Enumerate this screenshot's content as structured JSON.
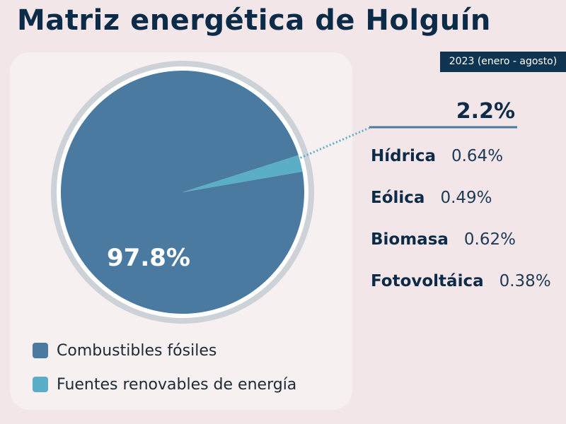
{
  "title": "Matriz energética de Holguín",
  "period": "2023 (enero - agosto)",
  "renewable_total_label": "2.2%",
  "colors": {
    "fossil": "#4b7aa0",
    "renewable": "#5aaec6",
    "title": "#0c2b48",
    "period_bg": "#0f3452"
  },
  "legend": [
    {
      "label": "Combustibles fósiles",
      "color": "#4b7aa0"
    },
    {
      "label": "Fuentes renovables de energía",
      "color": "#5aaec6"
    }
  ],
  "breakdown": [
    {
      "name": "Hídrica",
      "value": "0.64%"
    },
    {
      "name": "Eólica",
      "value": "0.49%"
    },
    {
      "name": "Biomasa",
      "value": "0.62%"
    },
    {
      "name": "Fotovoltáica",
      "value": "0.38%"
    }
  ],
  "chart_data": {
    "type": "pie",
    "title": "Matriz energética de Holguín",
    "subtitle": "2023 (enero - agosto)",
    "categories": [
      "Combustibles fósiles",
      "Fuentes renovables de energía"
    ],
    "values": [
      97.8,
      2.2
    ],
    "data_labels": [
      "97.8%",
      "2.2%"
    ],
    "colors": [
      "#4b7aa0",
      "#5aaec6"
    ],
    "legend_position": "bottom-left",
    "sub_breakdown": {
      "parent": "Fuentes renovables de energía",
      "categories": [
        "Hídrica",
        "Eólica",
        "Biomasa",
        "Fotovoltáica"
      ],
      "values": [
        0.64,
        0.49,
        0.62,
        0.38
      ]
    }
  }
}
